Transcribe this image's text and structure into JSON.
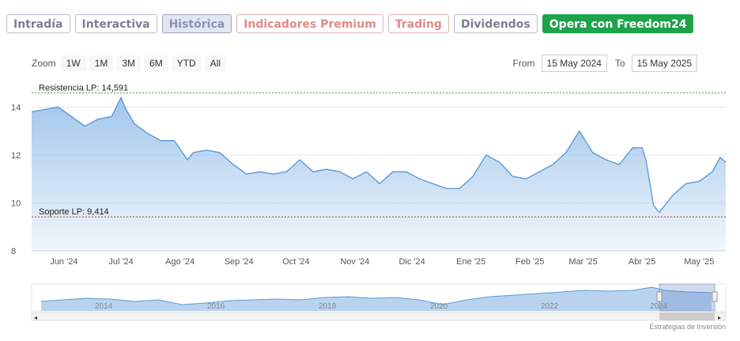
{
  "tabs": [
    {
      "label": "Intradía"
    },
    {
      "label": "Interactiva"
    },
    {
      "label": "Histórica"
    },
    {
      "label": "Indicadores Premium"
    },
    {
      "label": "Trading"
    },
    {
      "label": "Dividendos"
    },
    {
      "label": "Opera con Freedom24"
    }
  ],
  "zoom": {
    "label": "Zoom",
    "buttons": [
      "1W",
      "1M",
      "3M",
      "6M",
      "YTD",
      "All"
    ]
  },
  "range": {
    "from_label": "From",
    "from_value": "15 May 2024",
    "to_label": "To",
    "to_value": "15 May 2025"
  },
  "colors": {
    "line": "#5b9bd5",
    "fill_top": "#9cc3ea",
    "resistance": "#2e9c3f",
    "support": "#c0392b"
  },
  "chart_data": {
    "type": "area",
    "x_ticks": [
      "Jun '24",
      "Jul '24",
      "Ago '24",
      "Sep '24",
      "Oct '24",
      "Nov '24",
      "Dic '24",
      "Ene '25",
      "Feb '25",
      "Mar '25",
      "Abr '25",
      "May '25"
    ],
    "ylim": [
      8,
      15
    ],
    "y_ticks": [
      8,
      10,
      12,
      14
    ],
    "resistance": {
      "label": "Resistencia LP: 14,591",
      "value": 14.591
    },
    "support": {
      "label": "Soporte LP: 9,414",
      "value": 9.414
    },
    "series": [
      {
        "x": [
          "2024-05-15",
          "2024-05-22",
          "2024-05-29",
          "2024-06-05",
          "2024-06-12",
          "2024-06-19",
          "2024-06-26",
          "2024-07-01",
          "2024-07-03",
          "2024-07-08",
          "2024-07-15",
          "2024-07-22",
          "2024-07-29",
          "2024-08-05",
          "2024-08-08",
          "2024-08-15",
          "2024-08-22",
          "2024-08-29",
          "2024-09-05",
          "2024-09-12",
          "2024-09-19",
          "2024-09-26",
          "2024-10-03",
          "2024-10-10",
          "2024-10-17",
          "2024-10-24",
          "2024-10-31",
          "2024-11-07",
          "2024-11-14",
          "2024-11-21",
          "2024-11-28",
          "2024-12-05",
          "2024-12-12",
          "2024-12-19",
          "2024-12-26",
          "2025-01-02",
          "2025-01-09",
          "2025-01-16",
          "2025-01-23",
          "2025-01-30",
          "2025-02-06",
          "2025-02-13",
          "2025-02-20",
          "2025-02-27",
          "2025-03-06",
          "2025-03-13",
          "2025-03-20",
          "2025-03-27",
          "2025-04-01",
          "2025-04-03",
          "2025-04-07",
          "2025-04-10",
          "2025-04-17",
          "2025-04-24",
          "2025-05-01",
          "2025-05-08",
          "2025-05-12",
          "2025-05-15"
        ],
        "values": [
          13.8,
          13.9,
          14.0,
          13.6,
          13.2,
          13.5,
          13.6,
          14.4,
          14.0,
          13.3,
          12.9,
          12.6,
          12.6,
          11.8,
          12.1,
          12.2,
          12.1,
          11.6,
          11.2,
          11.3,
          11.2,
          11.3,
          11.8,
          11.3,
          11.4,
          11.3,
          11.0,
          11.3,
          10.8,
          11.3,
          11.3,
          11.0,
          10.8,
          10.6,
          10.6,
          11.1,
          12.0,
          11.7,
          11.1,
          11.0,
          11.3,
          11.6,
          12.1,
          13.0,
          12.1,
          11.8,
          11.6,
          12.3,
          12.3,
          11.8,
          9.9,
          9.6,
          10.3,
          10.8,
          10.9,
          11.3,
          11.9,
          11.7
        ]
      }
    ],
    "navigator": {
      "x_ticks": [
        "2014",
        "2016",
        "2018",
        "2020",
        "2022",
        "2024"
      ]
    }
  },
  "credit": "Estrategias de Inversión"
}
